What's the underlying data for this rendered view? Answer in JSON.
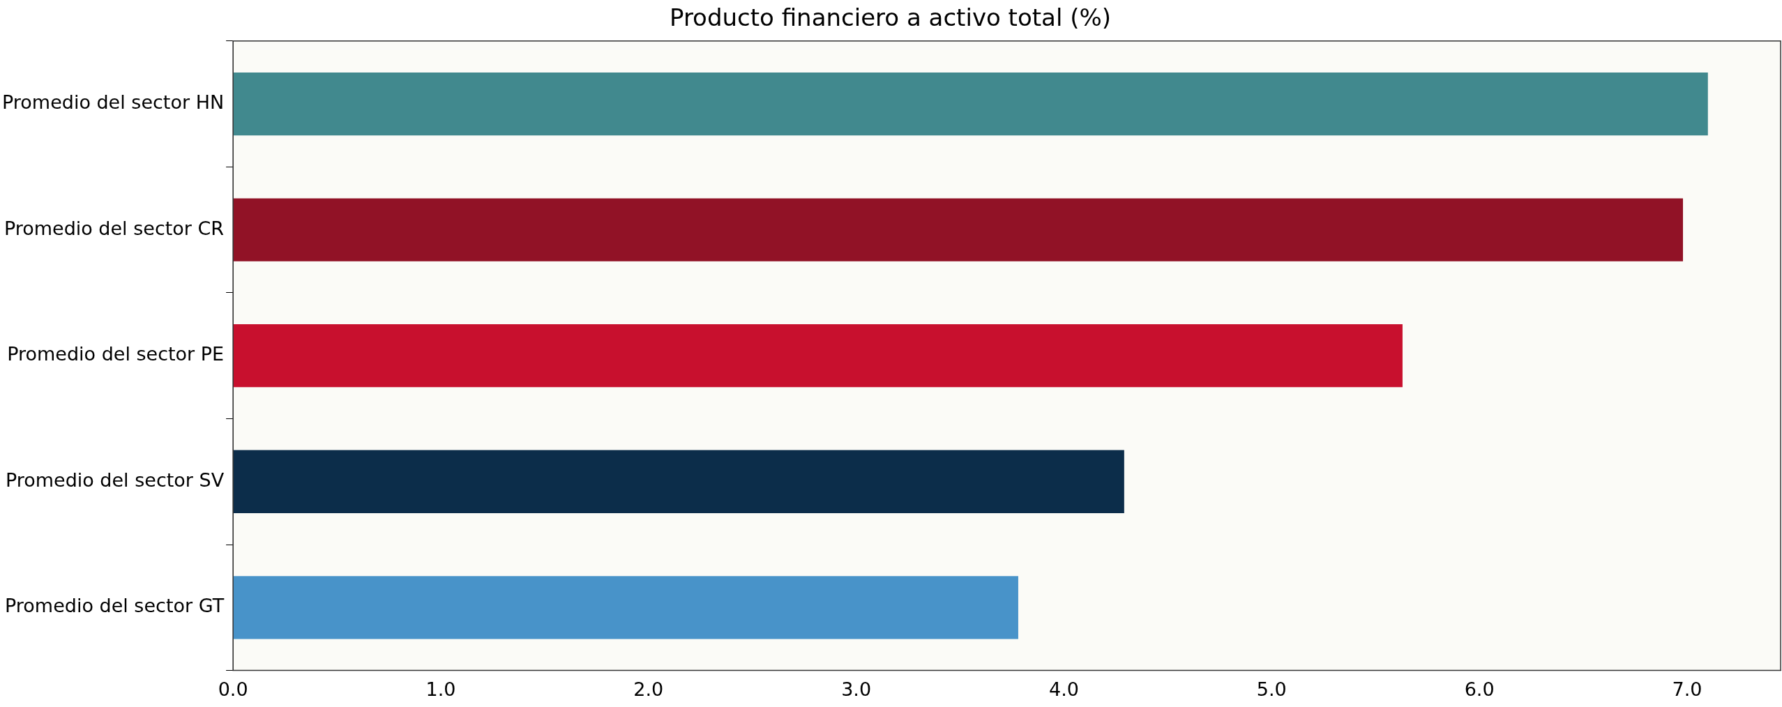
{
  "chart_data": {
    "type": "bar",
    "orientation": "horizontal",
    "title": "Producto financiero a activo total (%)",
    "categories": [
      "Promedio del sector HN",
      "Promedio del sector CR",
      "Promedio del sector PE",
      "Promedio del sector SV",
      "Promedio del sector GT"
    ],
    "values": [
      7.1,
      6.98,
      5.63,
      4.29,
      3.78
    ],
    "colors": [
      "#41898e",
      "#911226",
      "#c8102e",
      "#0c2d4a",
      "#4893c9"
    ],
    "xlim": [
      0,
      7.45
    ],
    "xticks": [
      {
        "value": 0,
        "label": "0.0"
      },
      {
        "value": 1,
        "label": "1.0"
      },
      {
        "value": 2,
        "label": "2.0"
      },
      {
        "value": 3,
        "label": "3.0"
      },
      {
        "value": 4,
        "label": "4.0"
      },
      {
        "value": 5,
        "label": "5.0"
      },
      {
        "value": 6,
        "label": "6.0"
      },
      {
        "value": 7,
        "label": "7.0"
      }
    ],
    "grid": false,
    "legend": false
  }
}
